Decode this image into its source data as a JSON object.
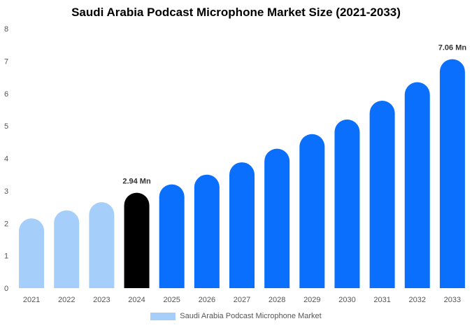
{
  "chart_data": {
    "type": "bar",
    "title": "Saudi Arabia Podcast Microphone Market Size (2021-2033)",
    "xlabel": "",
    "ylabel": "",
    "ylim": [
      0,
      8
    ],
    "yticks": [
      "0",
      "1",
      "2",
      "3",
      "4",
      "5",
      "6",
      "7",
      "8"
    ],
    "grid": false,
    "legend_position": "bottom-center",
    "categories": [
      "2021",
      "2022",
      "2023",
      "2024",
      "2025",
      "2026",
      "2027",
      "2028",
      "2029",
      "2030",
      "2031",
      "2032",
      "2033"
    ],
    "series": [
      {
        "name": "Saudi Arabia Podcast Microphone Market",
        "values": [
          2.15,
          2.4,
          2.65,
          2.94,
          3.2,
          3.5,
          3.88,
          4.3,
          4.75,
          5.2,
          5.78,
          6.35,
          7.06
        ]
      }
    ],
    "bar_colors": [
      "#a6cefa",
      "#a6cefa",
      "#a6cefa",
      "#000000",
      "#0b6ffd",
      "#0b6ffd",
      "#0b6ffd",
      "#0b6ffd",
      "#0b6ffd",
      "#0b6ffd",
      "#0b6ffd",
      "#0b6ffd",
      "#0b6ffd"
    ],
    "annotations": [
      {
        "category": "2024",
        "text": "2.94 Mn"
      },
      {
        "category": "2033",
        "text": "7.06 Mn"
      }
    ],
    "legend_color": "#a6cefa"
  }
}
